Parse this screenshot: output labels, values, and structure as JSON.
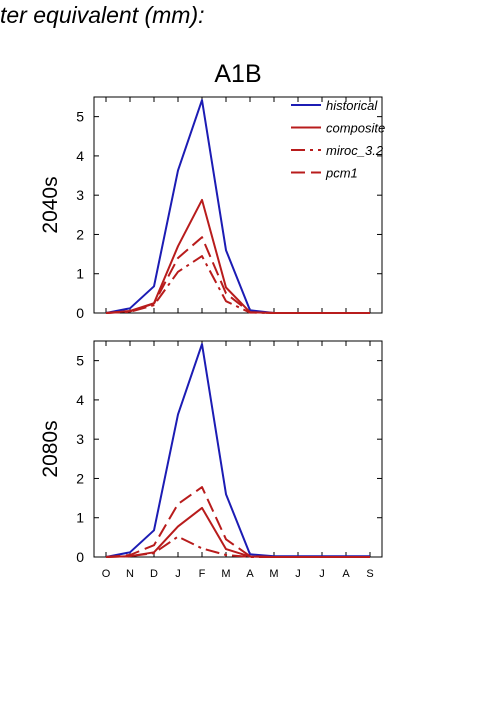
{
  "header": {
    "title": "ter equivalent (mm):"
  },
  "chart_data": [
    {
      "type": "line",
      "title": "A1B",
      "ylabel": "2040s",
      "xlabel": "",
      "categories": [
        "O",
        "N",
        "D",
        "J",
        "F",
        "M",
        "A",
        "M",
        "J",
        "J",
        "A",
        "S"
      ],
      "ylim": [
        0,
        5.5
      ],
      "yticks": [
        0,
        1,
        2,
        3,
        4,
        5
      ],
      "grid": false,
      "legend_position": "top-right",
      "series": [
        {
          "name": "historical",
          "color": "#1c1cb4",
          "dash": "solid",
          "values": [
            0,
            0.12,
            0.68,
            3.63,
            5.42,
            1.6,
            0.07,
            0,
            0,
            0,
            0,
            0
          ]
        },
        {
          "name": "composite",
          "color": "#b81c1c",
          "dash": "solid",
          "values": [
            0,
            0.05,
            0.25,
            1.7,
            2.88,
            0.65,
            0.02,
            0,
            0,
            0,
            0,
            0
          ]
        },
        {
          "name": "miroc_3.2",
          "color": "#b81c1c",
          "dash": "dashdot",
          "values": [
            0,
            0.03,
            0.2,
            1.05,
            1.45,
            0.3,
            0.01,
            0,
            0,
            0,
            0,
            0
          ]
        },
        {
          "name": "pcm1",
          "color": "#b81c1c",
          "dash": "dashed",
          "values": [
            0,
            0.04,
            0.24,
            1.4,
            1.93,
            0.5,
            0.02,
            0,
            0,
            0,
            0,
            0
          ]
        }
      ]
    },
    {
      "type": "line",
      "title": "",
      "ylabel": "2080s",
      "xlabel": "",
      "categories": [
        "O",
        "N",
        "D",
        "J",
        "F",
        "M",
        "A",
        "M",
        "J",
        "J",
        "A",
        "S"
      ],
      "ylim": [
        0,
        5.5
      ],
      "yticks": [
        0,
        1,
        2,
        3,
        4,
        5
      ],
      "grid": false,
      "series": [
        {
          "name": "historical",
          "color": "#1c1cb4",
          "dash": "solid",
          "values": [
            0,
            0.12,
            0.68,
            3.63,
            5.42,
            1.6,
            0.07,
            0.02,
            0.02,
            0.02,
            0.02,
            0.02
          ]
        },
        {
          "name": "composite",
          "color": "#b81c1c",
          "dash": "solid",
          "values": [
            0,
            0.02,
            0.12,
            0.78,
            1.25,
            0.2,
            0.01,
            0,
            0,
            0,
            0,
            0
          ]
        },
        {
          "name": "miroc_3.2",
          "color": "#b81c1c",
          "dash": "dashdot",
          "values": [
            0,
            0.02,
            0.1,
            0.52,
            0.22,
            0.05,
            0,
            0,
            0,
            0,
            0,
            0
          ]
        },
        {
          "name": "pcm1",
          "color": "#b81c1c",
          "dash": "dashed",
          "values": [
            0,
            0.05,
            0.3,
            1.35,
            1.78,
            0.45,
            0.02,
            0,
            0,
            0,
            0,
            0
          ]
        }
      ]
    }
  ]
}
